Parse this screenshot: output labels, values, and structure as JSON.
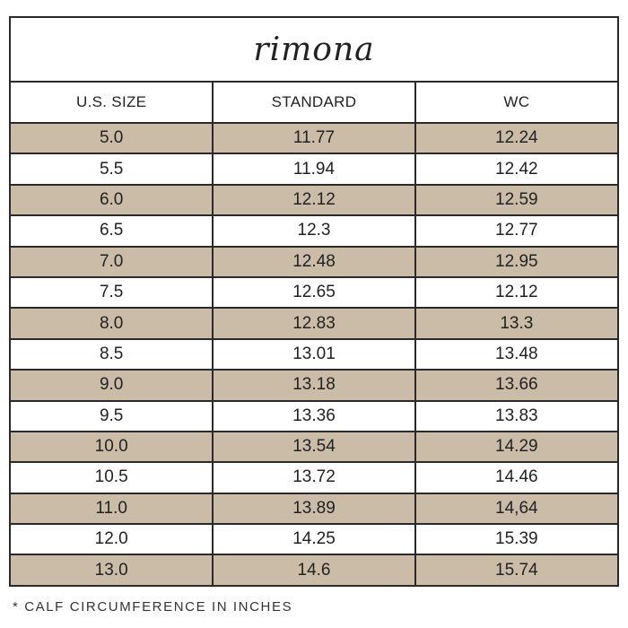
{
  "brand": "rimona",
  "headers": [
    "U.S. SIZE",
    "STANDARD",
    "WC"
  ],
  "rows": [
    [
      "5.0",
      "11.77",
      "12.24"
    ],
    [
      "5.5",
      "11.94",
      "12.42"
    ],
    [
      "6.0",
      "12.12",
      "12.59"
    ],
    [
      "6.5",
      "12.3",
      "12.77"
    ],
    [
      "7.0",
      "12.48",
      "12.95"
    ],
    [
      "7.5",
      "12.65",
      "12.12"
    ],
    [
      "8.0",
      "12.83",
      "13.3"
    ],
    [
      "8.5",
      "13.01",
      "13.48"
    ],
    [
      "9.0",
      "13.18",
      "13.66"
    ],
    [
      "9.5",
      "13.36",
      "13.83"
    ],
    [
      "10.0",
      "13.54",
      "14.29"
    ],
    [
      "10.5",
      "13.72",
      "14.46"
    ],
    [
      "11.0",
      "13.89",
      "14,64"
    ],
    [
      "12.0",
      "14.25",
      "15.39"
    ],
    [
      "13.0",
      "14.6",
      "15.74"
    ]
  ],
  "footnote": "* CALF CIRCUMFERENCE IN INCHES",
  "colors": {
    "shaded_row": "#cbbca8",
    "border": "#2a2a2a"
  }
}
